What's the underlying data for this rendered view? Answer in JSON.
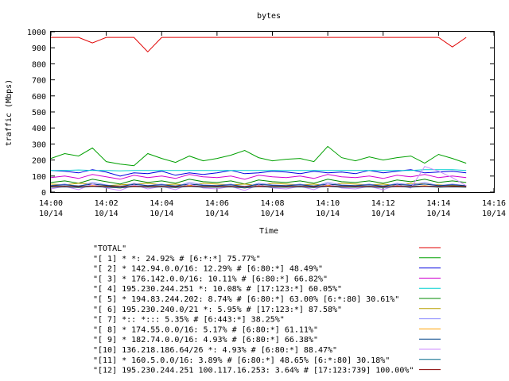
{
  "chart_data": {
    "type": "line",
    "title": "bytes",
    "xlabel": "Time",
    "ylabel": "traffic (Mbps)",
    "ylim": [
      0,
      1000
    ],
    "xlim": [
      "14:00",
      "14:16"
    ],
    "grid": false,
    "legend_placement": "below",
    "y_ticks": [
      "0",
      "100",
      "200",
      "300",
      "400",
      "500",
      "600",
      "700",
      "800",
      "900",
      "1000"
    ],
    "x_ticks": [
      {
        "time": "14:00",
        "date": "10/14"
      },
      {
        "time": "14:02",
        "date": "10/14"
      },
      {
        "time": "14:04",
        "date": "10/14"
      },
      {
        "time": "14:06",
        "date": "10/14"
      },
      {
        "time": "14:08",
        "date": "10/14"
      },
      {
        "time": "14:10",
        "date": "10/14"
      },
      {
        "time": "14:12",
        "date": "10/14"
      },
      {
        "time": "14:14",
        "date": "10/14"
      },
      {
        "time": "14:16",
        "date": "10/14"
      }
    ],
    "x_minutes": [
      0,
      0.5,
      1,
      1.5,
      2,
      2.5,
      3,
      3.5,
      4,
      4.5,
      5,
      5.5,
      6,
      6.5,
      7,
      7.5,
      8,
      8.5,
      9,
      9.5,
      10,
      10.5,
      11,
      11.5,
      12,
      12.5,
      13,
      13.5,
      14,
      14.5,
      15
    ],
    "series": [
      {
        "name": "\"TOTAL\"",
        "color": "#e00000",
        "values": [
          965,
          965,
          965,
          930,
          965,
          965,
          965,
          875,
          965,
          965,
          965,
          965,
          965,
          965,
          965,
          965,
          965,
          965,
          965,
          965,
          965,
          965,
          965,
          965,
          965,
          965,
          965,
          965,
          965,
          905,
          965
        ]
      },
      {
        "name": "\"[ 1] * *: 24.92% # [6:*:*] 75.77%\"",
        "color": "#00a000",
        "values": [
          210,
          240,
          225,
          275,
          190,
          175,
          165,
          240,
          210,
          185,
          225,
          195,
          210,
          230,
          260,
          215,
          195,
          205,
          210,
          190,
          285,
          215,
          195,
          220,
          200,
          215,
          225,
          180,
          235,
          210,
          180
        ]
      },
      {
        "name": "\"[ 2] * 142.94.0.0/16: 12.29% # [6:80:*] 48.49%\"",
        "color": "#0000e0",
        "values": [
          135,
          130,
          120,
          140,
          125,
          100,
          120,
          115,
          130,
          105,
          120,
          110,
          120,
          135,
          115,
          120,
          130,
          125,
          115,
          130,
          120,
          125,
          115,
          135,
          120,
          130,
          140,
          120,
          125,
          130,
          120
        ]
      },
      {
        "name": "\"[ 3] * 176.142.0.0/16: 10.11% # [6:80:*] 66.82%\"",
        "color": "#d000d0",
        "values": [
          90,
          100,
          85,
          110,
          95,
          80,
          105,
          90,
          100,
          85,
          110,
          95,
          90,
          100,
          80,
          105,
          95,
          90,
          100,
          85,
          110,
          95,
          90,
          100,
          85,
          105,
          95,
          110,
          90,
          100,
          90
        ]
      },
      {
        "name": "\"[ 4] 195.230.244.251 *: 10.08% # [17:123:*] 60.05%\"",
        "color": "#00d0d0",
        "values": [
          135,
          135,
          138,
          135,
          135,
          132,
          135,
          135,
          135,
          135,
          135,
          135,
          135,
          135,
          135,
          135,
          135,
          135,
          135,
          135,
          135,
          135,
          135,
          135,
          135,
          135,
          135,
          140,
          140,
          140,
          135
        ]
      },
      {
        "name": "\"[ 5] * 194.83.244.202: 8.74% # [6:80:*] 63.00% [6:*:80] 30.61%\"",
        "color": "#008800",
        "values": [
          60,
          70,
          55,
          80,
          65,
          50,
          75,
          60,
          70,
          55,
          80,
          65,
          60,
          70,
          50,
          75,
          65,
          60,
          70,
          55,
          80,
          65,
          60,
          70,
          55,
          75,
          65,
          80,
          60,
          70,
          60
        ]
      },
      {
        "name": "\"[ 6] 195.230.240.0/21 *: 5.95% # [17:123:*] 87.58%\"",
        "color": "#b8a000",
        "values": [
          50,
          45,
          55,
          50,
          40,
          45,
          50,
          55,
          45,
          50,
          40,
          55,
          50,
          45,
          50,
          40,
          55,
          50,
          45,
          50,
          40,
          55,
          50,
          45,
          50,
          40,
          55,
          50,
          45,
          40,
          35
        ]
      },
      {
        "name": "\"[ 7] *:: *::: 5.35% # [6:443:*] 38.25%\"",
        "color": "#8888ff",
        "values": [
          40,
          50,
          35,
          60,
          45,
          30,
          55,
          40,
          50,
          35,
          60,
          45,
          40,
          50,
          30,
          55,
          45,
          40,
          50,
          35,
          60,
          45,
          40,
          50,
          35,
          55,
          45,
          60,
          40,
          50,
          40
        ]
      },
      {
        "name": "\"[ 8] * 174.55.0.0/16: 5.17% # [6:80:*] 61.11%\"",
        "color": "#ffa000",
        "values": [
          30,
          35,
          28,
          40,
          32,
          25,
          38,
          30,
          35,
          28,
          40,
          32,
          30,
          35,
          25,
          38,
          32,
          30,
          35,
          28,
          40,
          32,
          30,
          35,
          28,
          38,
          32,
          40,
          30,
          35,
          30
        ]
      },
      {
        "name": "\"[ 9] * 182.74.0.0/16: 4.93% # [6:80:*] 66.38%\"",
        "color": "#004488",
        "values": [
          40,
          45,
          38,
          50,
          42,
          35,
          48,
          40,
          45,
          38,
          50,
          42,
          40,
          45,
          35,
          48,
          42,
          40,
          45,
          38,
          50,
          42,
          40,
          45,
          38,
          48,
          42,
          50,
          40,
          45,
          40
        ]
      },
      {
        "name": "\"[10] 136.218.186.64/26 *: 4.93% # [6:80:*] 88.47%\"",
        "color": "#cc88ff",
        "values": [
          20,
          35,
          15,
          50,
          25,
          10,
          45,
          20,
          35,
          15,
          50,
          25,
          20,
          35,
          10,
          45,
          25,
          20,
          35,
          15,
          50,
          25,
          20,
          35,
          15,
          45,
          25,
          160,
          130,
          90,
          40
        ]
      },
      {
        "name": "\"[11] * 160.5.0.0/16: 3.89% # [6:80:*] 48.65% [6:*:80] 30.18%\"",
        "color": "#006688",
        "values": [
          30,
          32,
          28,
          35,
          30,
          26,
          34,
          30,
          32,
          28,
          35,
          30,
          30,
          32,
          26,
          34,
          30,
          30,
          32,
          28,
          35,
          30,
          30,
          32,
          28,
          34,
          30,
          35,
          30,
          32,
          30
        ]
      },
      {
        "name": "\"[12] 195.230.244.251 100.117.16.253: 3.64% # [17:123:739] 100.00%\"",
        "color": "#880000",
        "values": [
          35,
          36,
          34,
          37,
          35,
          33,
          36,
          35,
          36,
          34,
          37,
          35,
          35,
          36,
          33,
          36,
          35,
          35,
          36,
          34,
          37,
          35,
          35,
          36,
          34,
          36,
          35,
          37,
          35,
          36,
          35
        ]
      }
    ]
  }
}
